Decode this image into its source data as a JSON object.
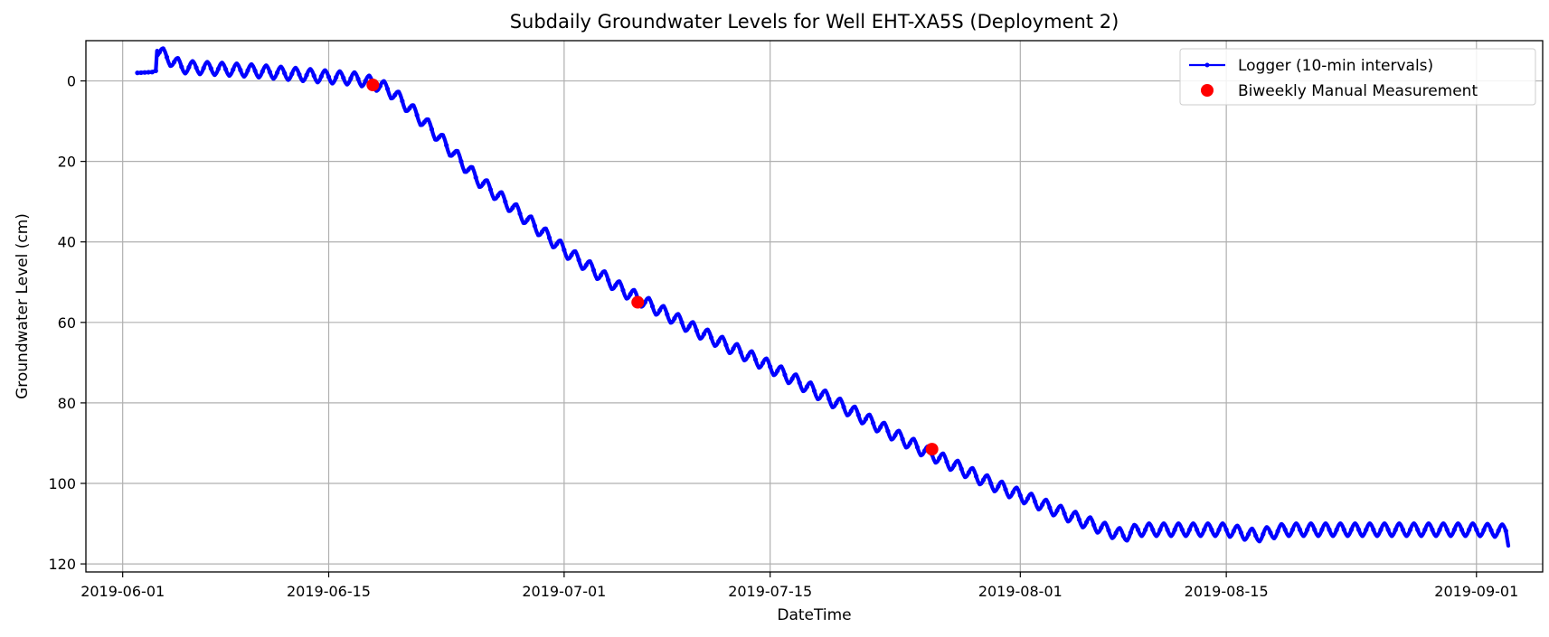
{
  "chart_data": {
    "type": "line",
    "title": "Subdaily Groundwater Levels for Well EHT-XA5S (Deployment 2)",
    "xlabel": "DateTime",
    "ylabel": "Groundwater Level (cm)",
    "xlim": [
      "2019-05-29T12:00",
      "2019-09-05T12:00"
    ],
    "ylim": [
      122,
      -10
    ],
    "y_inverted": true,
    "grid": true,
    "legend_position": "upper-right",
    "x_ticks": [
      "2019-06-01",
      "2019-06-15",
      "2019-07-01",
      "2019-07-15",
      "2019-08-01",
      "2019-08-15",
      "2019-09-01"
    ],
    "y_ticks": [
      "0",
      "20",
      "40",
      "60",
      "80",
      "100",
      "120"
    ],
    "y_tick_values": [
      0,
      20,
      40,
      60,
      80,
      100,
      120
    ],
    "series": [
      {
        "name": "Logger (10-min intervals)",
        "kind": "line-with-small-markers",
        "color": "#0000ff",
        "description_points": [
          [
            "2019-06-02T00:00",
            -2.0
          ],
          [
            "2019-06-03T00:00",
            -2.2
          ],
          [
            "2019-06-03T06:00",
            -2.5
          ],
          [
            "2019-06-03T08:00",
            -7.5
          ],
          [
            "2019-06-05T00:00",
            -3.5
          ],
          [
            "2019-06-10T00:00",
            -2.5
          ],
          [
            "2019-06-15T00:00",
            -1.0
          ],
          [
            "2019-06-17T00:00",
            -0.5
          ],
          [
            "2019-06-18T00:00",
            0.5
          ],
          [
            "2019-06-19T00:00",
            2.0
          ],
          [
            "2019-06-20T00:00",
            5.0
          ],
          [
            "2019-06-22T00:00",
            12.0
          ],
          [
            "2019-06-25T00:00",
            24.0
          ],
          [
            "2019-06-28T00:00",
            33.0
          ],
          [
            "2019-07-01T00:00",
            42.0
          ],
          [
            "2019-07-05T00:00",
            52.0
          ],
          [
            "2019-07-10T00:00",
            62.0
          ],
          [
            "2019-07-15T00:00",
            71.0
          ],
          [
            "2019-07-20T00:00",
            81.0
          ],
          [
            "2019-07-25T00:00",
            91.0
          ],
          [
            "2019-07-30T00:00",
            100.0
          ],
          [
            "2019-08-05T00:00",
            109.0
          ],
          [
            "2019-08-08T00:00",
            113.0
          ],
          [
            "2019-08-09T00:00",
            111.5
          ],
          [
            "2019-08-15T00:00",
            111.5
          ],
          [
            "2019-08-17T00:00",
            113.0
          ],
          [
            "2019-08-19T00:00",
            111.5
          ],
          [
            "2019-09-01T00:00",
            111.5
          ],
          [
            "2019-09-03T00:00",
            111.8
          ],
          [
            "2019-09-03T04:00",
            115.5
          ]
        ],
        "daily_oscillation_cm": 1.5
      },
      {
        "name": "Biweekly Manual Measurement",
        "kind": "scatter",
        "color": "#ff0000",
        "points": [
          [
            "2019-06-18T00:00",
            1.0
          ],
          [
            "2019-07-06T00:00",
            55.0
          ],
          [
            "2019-07-26T00:00",
            91.5
          ]
        ]
      }
    ]
  }
}
